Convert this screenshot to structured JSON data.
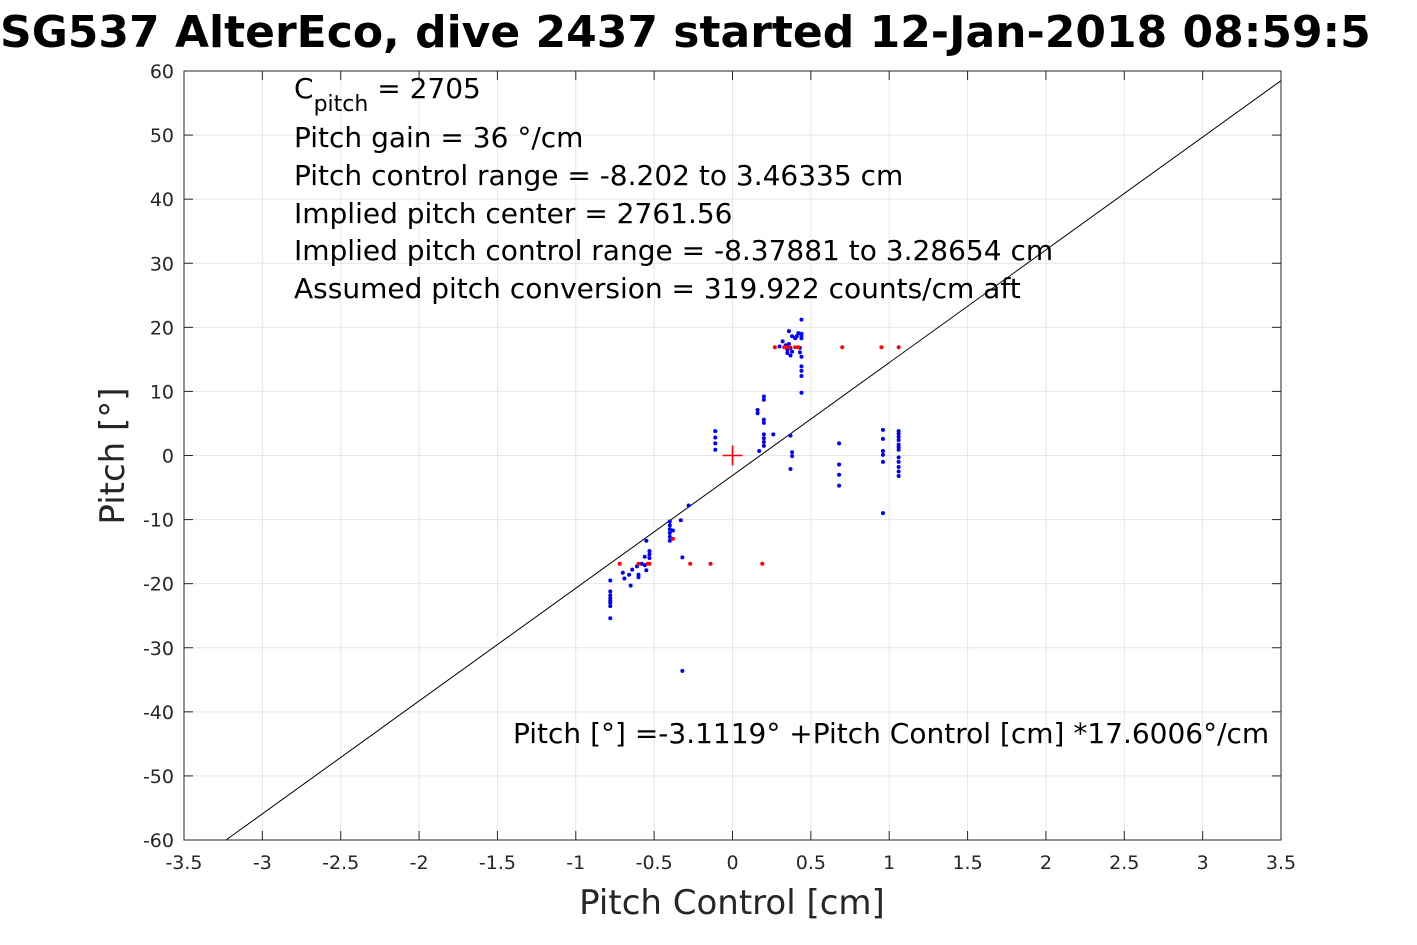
{
  "chart_data": {
    "type": "scatter",
    "title": "SG537 AlterEco, dive 2437 started 12-Jan-2018 08:59:5",
    "xlabel": "Pitch Control [cm]",
    "ylabel": "Pitch [°]",
    "xlim": [
      -3.5,
      3.5
    ],
    "ylim": [
      -60,
      60
    ],
    "grid": true,
    "xticks": [
      -3.5,
      -3,
      -2.5,
      -2,
      -1.5,
      -1,
      -0.5,
      0,
      0.5,
      1,
      1.5,
      2,
      2.5,
      3,
      3.5
    ],
    "xtick_labels": [
      "-3.5",
      "-3",
      "-2.5",
      "-2",
      "-1.5",
      "-1",
      "-0.5",
      "0",
      "0.5",
      "1",
      "1.5",
      "2",
      "2.5",
      "3",
      "3.5"
    ],
    "yticks": [
      -60,
      -50,
      -40,
      -30,
      -20,
      -10,
      0,
      10,
      20,
      30,
      40,
      50,
      60
    ],
    "ytick_labels": [
      "-60",
      "-50",
      "-40",
      "-30",
      "-20",
      "-10",
      "0",
      "10",
      "20",
      "30",
      "40",
      "50",
      "60"
    ],
    "annotations": {
      "c_pitch_main": "C",
      "c_pitch_sub": "pitch",
      "c_pitch_value": " = 2705",
      "lines": [
        "Pitch gain = 36 °/cm",
        "Pitch control range = -8.202 to 3.46335 cm",
        "Implied pitch center = 2761.56",
        "Implied pitch control range = -8.37881 to 3.28654 cm",
        "Assumed pitch conversion = 319.922 counts/cm aft"
      ],
      "fit_equation": "Pitch [°] =-3.1119° +Pitch Control [cm] *17.6006°/cm"
    },
    "fit_line": {
      "intercept": -3.1119,
      "slope": 17.6006,
      "color": "#000000"
    },
    "center_marker": {
      "x": 0,
      "y": 0,
      "color": "#ff0000"
    },
    "series": [
      {
        "color": "#0000ff",
        "points": [
          [
            -0.78,
            -19.5
          ],
          [
            -0.78,
            -21.2
          ],
          [
            -0.78,
            -21.8
          ],
          [
            -0.78,
            -22.3
          ],
          [
            -0.78,
            -22.7
          ],
          [
            -0.78,
            -23.0
          ],
          [
            -0.78,
            -23.5
          ],
          [
            -0.78,
            -25.4
          ],
          [
            -0.7,
            -18.3
          ],
          [
            -0.69,
            -19.2
          ],
          [
            -0.66,
            -18.6
          ],
          [
            -0.65,
            -20.3
          ],
          [
            -0.64,
            -17.8
          ],
          [
            -0.61,
            -17.3
          ],
          [
            -0.6,
            -18.6
          ],
          [
            -0.6,
            -19.0
          ],
          [
            -0.58,
            -16.9
          ],
          [
            -0.56,
            -17.1
          ],
          [
            -0.56,
            -15.8
          ],
          [
            -0.55,
            -13.3
          ],
          [
            -0.55,
            -17.9
          ],
          [
            -0.53,
            -14.9
          ],
          [
            -0.53,
            -15.4
          ],
          [
            -0.53,
            -16.0
          ],
          [
            -0.4,
            -10.3
          ],
          [
            -0.4,
            -10.9
          ],
          [
            -0.4,
            -11.5
          ],
          [
            -0.4,
            -12.1
          ],
          [
            -0.4,
            -12.7
          ],
          [
            -0.4,
            -13.3
          ],
          [
            -0.38,
            -11.7
          ],
          [
            -0.33,
            -10.1
          ],
          [
            -0.28,
            -7.8
          ],
          [
            -0.32,
            -15.9
          ],
          [
            -0.32,
            -33.6
          ],
          [
            -0.11,
            3.8
          ],
          [
            -0.11,
            2.8
          ],
          [
            -0.11,
            1.9
          ],
          [
            -0.11,
            0.9
          ],
          [
            0.16,
            6.6
          ],
          [
            0.16,
            7.1
          ],
          [
            0.17,
            0.7
          ],
          [
            0.2,
            9.2
          ],
          [
            0.2,
            8.7
          ],
          [
            0.2,
            5.6
          ],
          [
            0.2,
            5.1
          ],
          [
            0.2,
            3.3
          ],
          [
            0.2,
            2.7
          ],
          [
            0.2,
            2.1
          ],
          [
            0.2,
            1.5
          ],
          [
            0.26,
            3.3
          ],
          [
            0.3,
            17.0
          ],
          [
            0.32,
            17.8
          ],
          [
            0.34,
            17.2
          ],
          [
            0.35,
            16.5
          ],
          [
            0.35,
            16.0
          ],
          [
            0.36,
            19.4
          ],
          [
            0.36,
            17.4
          ],
          [
            0.37,
            15.6
          ],
          [
            0.37,
            16.8
          ],
          [
            0.38,
            16.2
          ],
          [
            0.38,
            18.6
          ],
          [
            0.37,
            3.1
          ],
          [
            0.38,
            0.5
          ],
          [
            0.38,
            -0.1
          ],
          [
            0.37,
            -2.1
          ],
          [
            0.4,
            18.3
          ],
          [
            0.41,
            18.6
          ],
          [
            0.42,
            19.1
          ],
          [
            0.43,
            16.8
          ],
          [
            0.43,
            16.1
          ],
          [
            0.44,
            19.0
          ],
          [
            0.44,
            18.3
          ],
          [
            0.44,
            18.7
          ],
          [
            0.44,
            21.2
          ],
          [
            0.44,
            15.4
          ],
          [
            0.44,
            13.9
          ],
          [
            0.44,
            13.2
          ],
          [
            0.44,
            12.4
          ],
          [
            0.44,
            9.8
          ],
          [
            0.68,
            1.9
          ],
          [
            0.68,
            -1.4
          ],
          [
            0.68,
            -3.0
          ],
          [
            0.68,
            -4.7
          ],
          [
            0.96,
            4.0
          ],
          [
            0.96,
            2.6
          ],
          [
            0.96,
            0.7
          ],
          [
            0.96,
            0.1
          ],
          [
            0.96,
            -1.0
          ],
          [
            0.96,
            -9.0
          ],
          [
            1.06,
            3.8
          ],
          [
            1.06,
            3.4
          ],
          [
            1.06,
            2.9
          ],
          [
            1.06,
            2.4
          ],
          [
            1.06,
            1.7
          ],
          [
            1.06,
            1.3
          ],
          [
            1.06,
            0.9
          ],
          [
            1.06,
            -0.3
          ],
          [
            1.06,
            -1.0
          ],
          [
            1.06,
            -1.8
          ],
          [
            1.06,
            -2.5
          ],
          [
            1.06,
            -3.2
          ]
        ]
      },
      {
        "color": "#ff0000",
        "points": [
          [
            -0.72,
            -16.9
          ],
          [
            -0.6,
            -16.9
          ],
          [
            -0.54,
            -16.9
          ],
          [
            -0.53,
            -16.9
          ],
          [
            -0.38,
            -13.0
          ],
          [
            -0.27,
            -16.9
          ],
          [
            -0.14,
            -16.9
          ],
          [
            0.19,
            -16.9
          ],
          [
            0.27,
            16.9
          ],
          [
            0.33,
            16.9
          ],
          [
            0.34,
            16.9
          ],
          [
            0.36,
            16.9
          ],
          [
            0.4,
            16.9
          ],
          [
            0.42,
            16.9
          ],
          [
            0.7,
            16.9
          ],
          [
            0.95,
            16.9
          ],
          [
            1.06,
            16.9
          ]
        ]
      }
    ]
  }
}
